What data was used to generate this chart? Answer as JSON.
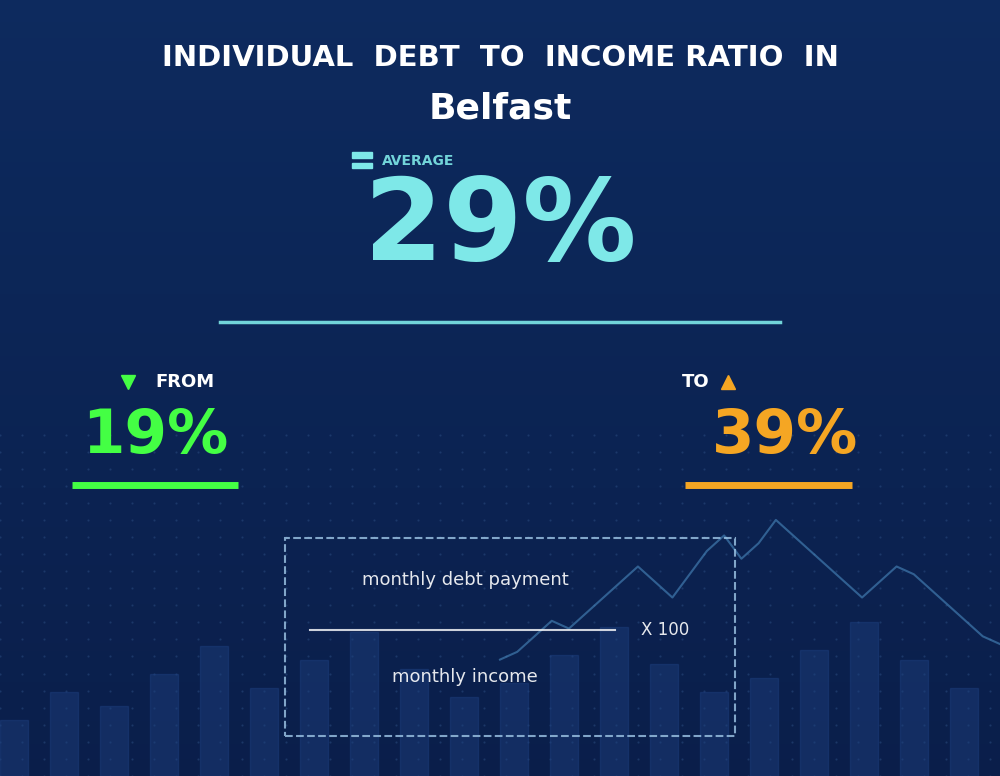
{
  "title_line1": "INDIVIDUAL  DEBT  TO  INCOME RATIO  IN",
  "title_line2": "Belfast",
  "bg_color_top": "#0d2a5e",
  "bg_color_bottom": "#0a1e4a",
  "average_label": "AVERAGE",
  "average_value": "29%",
  "average_color": "#7ee8e8",
  "avg_line_color": "#7ee8e8",
  "from_label": "FROM",
  "from_value": "19%",
  "from_color": "#44ff44",
  "from_underline_color": "#44ff44",
  "to_label": "TO",
  "to_value": "39%",
  "to_color": "#f5a623",
  "to_underline_color": "#f5a623",
  "formula_text1": "monthly debt payment",
  "formula_text2": "monthly income",
  "formula_multiplier": "X 100",
  "white_text": "#ffffff",
  "light_blue_text": "#a0c8e8",
  "bar_color": "#1e4080",
  "dot_color": "#2a4a7e",
  "line_color": "#4a8abf"
}
